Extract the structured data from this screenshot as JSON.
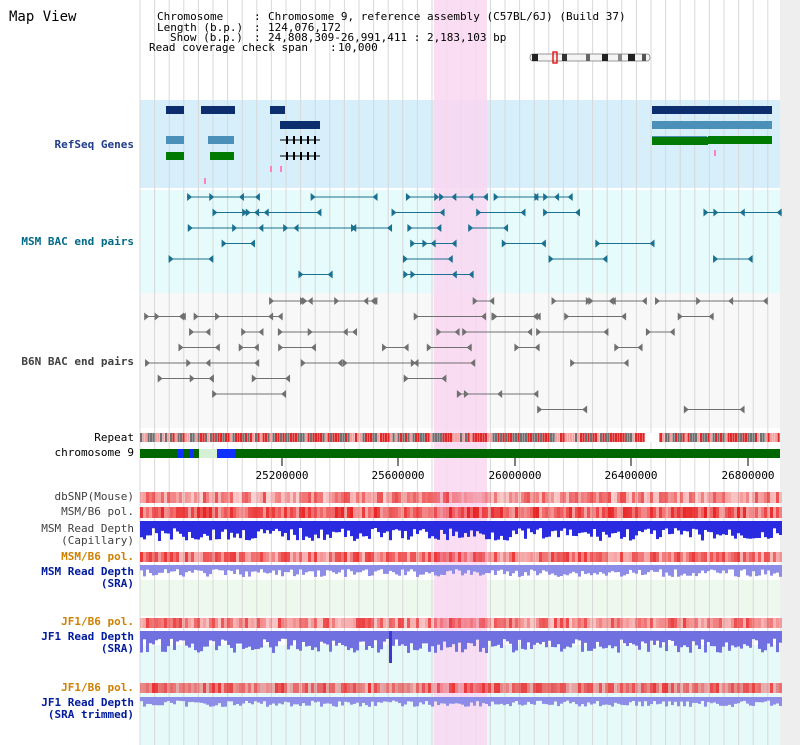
{
  "view_title": "Map View",
  "info": {
    "chromosome_key": "Chromosome",
    "chromosome_value": "Chromosome 9, reference assembly (C57BL/6J) (Build 37)",
    "length_key": "Length (b.p.)",
    "length_value": "124,076,172",
    "show_key": "Show (b.p.)",
    "show_value": "24,808,309-26,991,411 : 2,183,103 bp",
    "span_key": "Read coverage check span",
    "span_value": "10,000"
  },
  "tracks": {
    "refseq": "RefSeq Genes",
    "msm_bac": "MSM BAC end pairs",
    "b6n_bac": "B6N BAC end pairs",
    "repeat": "Repeat",
    "chromosome": "chromosome 9",
    "dbsnp": "dbSNP(Mouse)",
    "msm_b6_pol_1": "MSM/B6 pol.",
    "msm_read_depth_cap_1": "MSM Read Depth",
    "msm_read_depth_cap_2": "(Capillary)",
    "msm_b6_pol_2": "MSM/B6 pol.",
    "msm_read_depth_sra_1": "MSM Read Depth",
    "msm_read_depth_sra_2": "(SRA)",
    "jf1_b6_pol_1": "JF1/B6 pol.",
    "jf1_read_depth_sra_1": "JF1 Read Depth",
    "jf1_read_depth_sra_2": "(SRA)",
    "jf1_b6_pol_2": "JF1/B6 pol.",
    "jf1_read_depth_trim_1": "JF1 Read Depth",
    "jf1_read_depth_trim_2": "(SRA trimmed)"
  },
  "axis": {
    "ticks": [
      "25200000",
      "25600000",
      "26000000",
      "26400000",
      "26800000"
    ]
  },
  "colors": {
    "refseq_bg": "#d6effa",
    "msm_bg": "#e6fbfb",
    "b6n_bg": "#f8f8f8",
    "highlight": "#f9d7f1",
    "chromosome_bar": "#006600",
    "read_depth_blue": "#2a2ae0",
    "read_depth_light": "#8d8de8",
    "pol_red": "#e82020"
  }
}
